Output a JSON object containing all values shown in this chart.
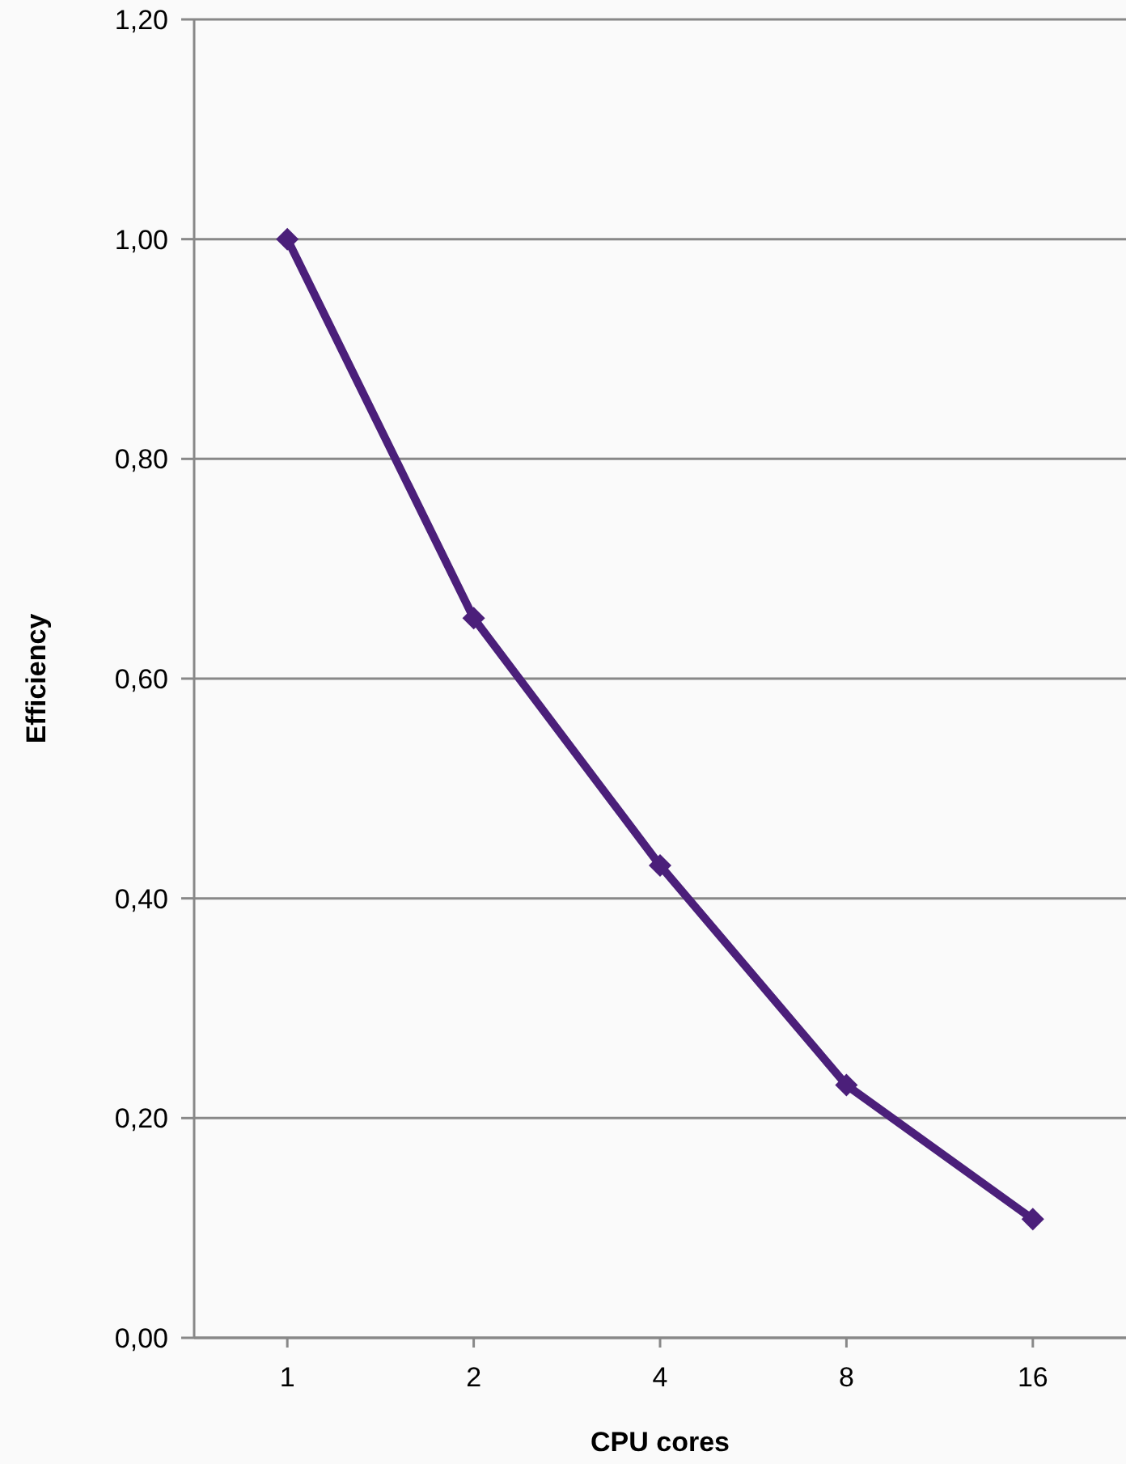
{
  "chart_data": {
    "type": "line",
    "xlabel": "CPU cores",
    "ylabel": "Efficiency",
    "categories": [
      "1",
      "2",
      "4",
      "8",
      "16"
    ],
    "series": [
      {
        "color": "#4b1f7a",
        "values": [
          1.0,
          0.655,
          0.43,
          0.23,
          0.108
        ]
      }
    ],
    "ylim": [
      0,
      1.2
    ],
    "yticks": [
      {
        "value": 0,
        "label": "0,00"
      },
      {
        "value": 0.2,
        "label": "0,20"
      },
      {
        "value": 0.4,
        "label": "0,40"
      },
      {
        "value": 0.6,
        "label": "0,60"
      },
      {
        "value": 0.8,
        "label": "0,80"
      },
      {
        "value": 1.0,
        "label": "1,00"
      },
      {
        "value": 1.2,
        "label": "1,20"
      }
    ],
    "grid": "y",
    "legend": false,
    "marker": "diamond",
    "line_style": "solid"
  }
}
